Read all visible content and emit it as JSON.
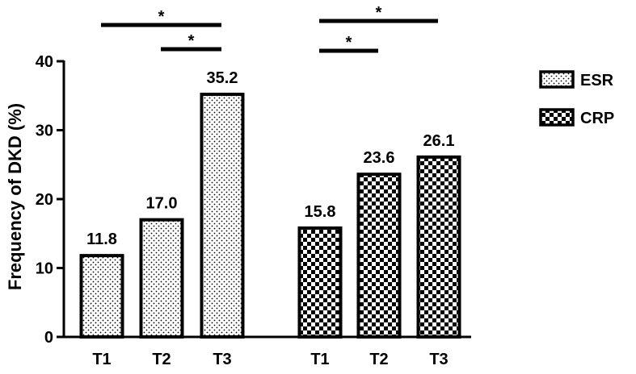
{
  "chart_data": {
    "type": "bar",
    "ylabel": "Frequency of DKD (%)",
    "ylim": [
      0,
      40
    ],
    "yticks": [
      0,
      10,
      20,
      30,
      40
    ],
    "grid": false,
    "legend_position": "right",
    "groups": [
      {
        "name": "ESR",
        "pattern": "dots",
        "categories": [
          "T1",
          "T2",
          "T3"
        ],
        "values": [
          11.8,
          17.0,
          35.2
        ],
        "value_labels": [
          "11.8",
          "17.0",
          "35.2"
        ],
        "significance": [
          {
            "from": "T1",
            "to": "T3",
            "label": "*"
          },
          {
            "from": "T2",
            "to": "T3",
            "label": "*"
          }
        ]
      },
      {
        "name": "CRP",
        "pattern": "checker",
        "categories": [
          "T1",
          "T2",
          "T3"
        ],
        "values": [
          15.8,
          23.6,
          26.1
        ],
        "value_labels": [
          "15.8",
          "23.6",
          "26.1"
        ],
        "significance": [
          {
            "from": "T1",
            "to": "T3",
            "label": "*"
          },
          {
            "from": "T1",
            "to": "T2",
            "label": "*"
          }
        ]
      }
    ],
    "legend": [
      {
        "label": "ESR",
        "pattern": "dots"
      },
      {
        "label": "CRP",
        "pattern": "checker"
      }
    ]
  }
}
